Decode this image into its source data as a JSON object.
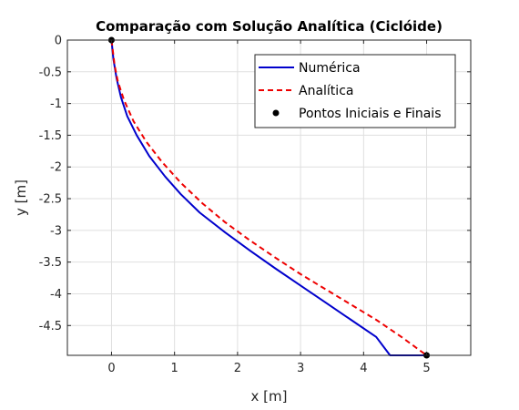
{
  "chart_data": {
    "type": "line",
    "title": "Comparação com Solução Analítica (Ciclóide)",
    "xlabel": "x [m]",
    "ylabel": "y [m]",
    "xlim": [
      -0.7,
      5.7
    ],
    "ylim": [
      -4.97,
      0
    ],
    "xticks": [
      0,
      1,
      2,
      3,
      4,
      5
    ],
    "yticks": [
      0,
      -0.5,
      -1,
      -1.5,
      -2,
      -2.5,
      -3,
      -3.5,
      -4,
      -4.5
    ],
    "xtick_labels": [
      "0",
      "1",
      "2",
      "3",
      "4",
      "5"
    ],
    "ytick_labels": [
      "0",
      "-0.5",
      "-1",
      "-1.5",
      "-2",
      "-2.5",
      "-3",
      "-3.5",
      "-4",
      "-4.5"
    ],
    "grid": true,
    "legend_position": "top-right",
    "series": [
      {
        "name": "Numérica",
        "color": "#0000cc",
        "style": "solid",
        "x": [
          0,
          0.03,
          0.08,
          0.15,
          0.25,
          0.4,
          0.6,
          0.85,
          1.1,
          1.4,
          1.8,
          2.2,
          2.6,
          3.0,
          3.4,
          3.8,
          4.2,
          4.42,
          5.0
        ],
        "y": [
          0,
          -0.3,
          -0.6,
          -0.9,
          -1.2,
          -1.5,
          -1.83,
          -2.15,
          -2.43,
          -2.72,
          -3.03,
          -3.32,
          -3.6,
          -3.87,
          -4.14,
          -4.41,
          -4.68,
          -4.97,
          -4.97
        ]
      },
      {
        "name": "Analítica",
        "color": "#ee0000",
        "style": "dashed",
        "x": [
          0,
          0.05,
          0.1,
          0.2,
          0.35,
          0.55,
          0.8,
          1.1,
          1.45,
          1.8,
          2.2,
          2.6,
          3.0,
          3.4,
          3.8,
          4.2,
          4.6,
          5.0
        ],
        "y": [
          0,
          -0.4,
          -0.65,
          -0.95,
          -1.28,
          -1.6,
          -1.92,
          -2.25,
          -2.58,
          -2.87,
          -3.16,
          -3.43,
          -3.69,
          -3.93,
          -4.17,
          -4.41,
          -4.68,
          -4.97
        ]
      },
      {
        "name": "Pontos Iniciais e Finais",
        "color": "#000000",
        "style": "markers",
        "x": [
          0,
          5
        ],
        "y": [
          0,
          -4.97
        ]
      }
    ]
  }
}
